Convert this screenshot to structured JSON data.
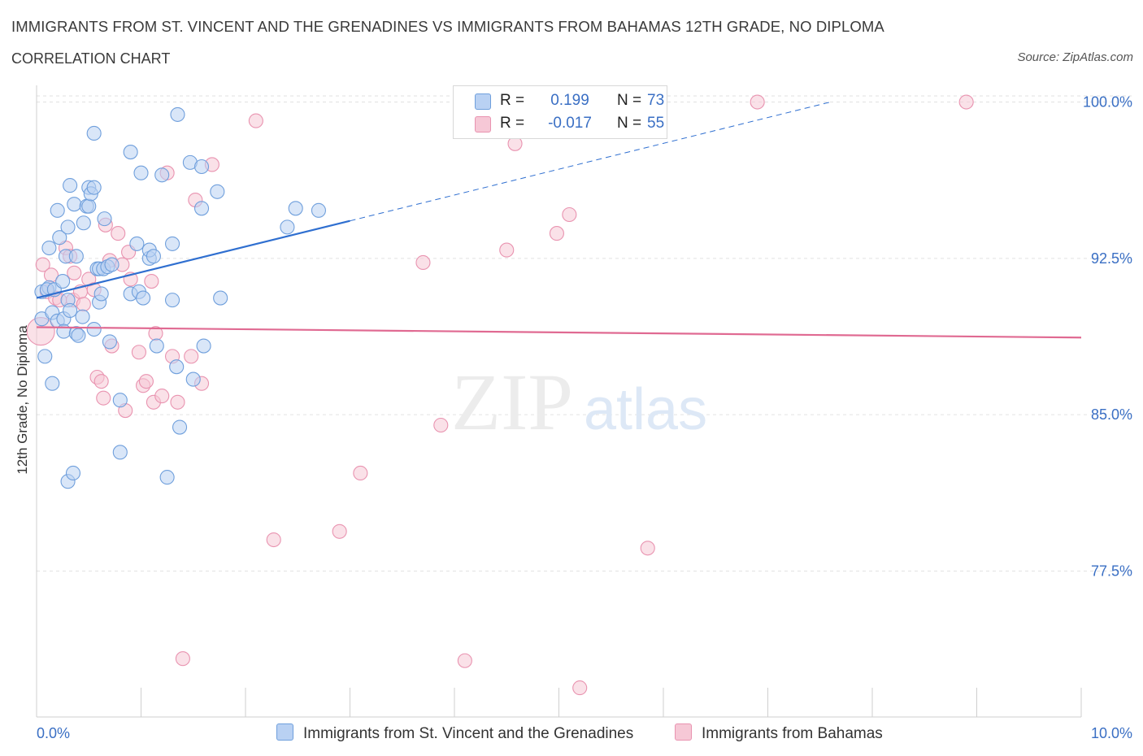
{
  "title": "IMMIGRANTS FROM ST. VINCENT AND THE GRENADINES VS IMMIGRANTS FROM BAHAMAS 12TH GRADE, NO DIPLOMA",
  "subtitle": "CORRELATION CHART",
  "source": "Source: ZipAtlas.com",
  "watermark": {
    "zip": "ZIP",
    "atlas": "atlas"
  },
  "legend": {
    "rows": [
      {
        "r_label": "R =",
        "r_value": "0.199",
        "n_label": "N =",
        "n_value": "73"
      },
      {
        "r_label": "R =",
        "r_value": "-0.017",
        "n_label": "N =",
        "n_value": "55"
      }
    ]
  },
  "colors": {
    "blue_fill": "#b9d1f3",
    "blue_stroke": "#6f9fdc",
    "blue_line": "#2f6fd0",
    "pink_fill": "#f6c8d6",
    "pink_stroke": "#e993b0",
    "pink_line": "#e06a92",
    "tick_label": "#3a6fc4",
    "grid": "#e2e2e2"
  },
  "chart_data": {
    "type": "scatter",
    "xlabel": "",
    "ylabel": "12th Grade, No Diploma",
    "xlim": [
      0,
      10
    ],
    "ylim": [
      70.5,
      100.8
    ],
    "x_tick_labels": [
      "0.0%",
      "10.0%"
    ],
    "y_ticks": [
      77.5,
      85.0,
      92.5,
      100.0
    ],
    "y_tick_labels": [
      "77.5%",
      "85.0%",
      "92.5%",
      "100.0%"
    ],
    "grid": true,
    "series": [
      {
        "name": "Immigrants from St. Vincent and the Grenadines",
        "color": "#b9d1f3",
        "trend": {
          "x0": 0.0,
          "y0": 90.6,
          "x1": 3.0,
          "y1": 94.3,
          "dashed_to_x": 7.6,
          "dashed_to_y": 100.0
        },
        "points": [
          [
            0.05,
            90.9
          ],
          [
            0.08,
            87.8
          ],
          [
            0.05,
            89.6
          ],
          [
            0.12,
            91.1
          ],
          [
            0.1,
            91.0
          ],
          [
            0.15,
            89.9
          ],
          [
            0.12,
            93.0
          ],
          [
            0.17,
            91.0
          ],
          [
            0.2,
            89.5
          ],
          [
            0.2,
            94.8
          ],
          [
            0.22,
            93.5
          ],
          [
            0.26,
            89.6
          ],
          [
            0.25,
            91.4
          ],
          [
            0.28,
            92.6
          ],
          [
            0.26,
            89.0
          ],
          [
            0.3,
            90.5
          ],
          [
            0.32,
            90.0
          ],
          [
            0.3,
            94.0
          ],
          [
            0.36,
            95.1
          ],
          [
            0.38,
            92.6
          ],
          [
            0.38,
            88.9
          ],
          [
            0.4,
            88.8
          ],
          [
            0.44,
            89.7
          ],
          [
            0.45,
            94.2
          ],
          [
            0.48,
            95.0
          ],
          [
            0.5,
            95.9
          ],
          [
            0.5,
            95.0
          ],
          [
            0.52,
            95.6
          ],
          [
            0.55,
            95.9
          ],
          [
            0.55,
            89.1
          ],
          [
            0.55,
            98.5
          ],
          [
            0.58,
            92.0
          ],
          [
            0.6,
            90.4
          ],
          [
            0.6,
            92.0
          ],
          [
            0.62,
            90.8
          ],
          [
            0.64,
            92.0
          ],
          [
            0.65,
            94.4
          ],
          [
            0.68,
            92.1
          ],
          [
            0.72,
            92.2
          ],
          [
            0.8,
            85.7
          ],
          [
            0.8,
            83.2
          ],
          [
            0.9,
            97.6
          ],
          [
            0.9,
            90.8
          ],
          [
            0.96,
            93.2
          ],
          [
            0.98,
            90.9
          ],
          [
            1.0,
            96.6
          ],
          [
            1.02,
            90.6
          ],
          [
            1.08,
            92.5
          ],
          [
            1.08,
            92.9
          ],
          [
            1.15,
            88.3
          ],
          [
            1.2,
            96.5
          ],
          [
            1.25,
            82.0
          ],
          [
            1.3,
            90.5
          ],
          [
            1.3,
            93.2
          ],
          [
            1.34,
            87.3
          ],
          [
            1.35,
            99.4
          ],
          [
            1.37,
            84.4
          ],
          [
            1.47,
            97.1
          ],
          [
            1.5,
            86.7
          ],
          [
            1.58,
            94.9
          ],
          [
            1.58,
            96.9
          ],
          [
            1.6,
            88.3
          ],
          [
            1.73,
            95.7
          ],
          [
            1.76,
            90.6
          ],
          [
            2.4,
            94.0
          ],
          [
            2.48,
            94.9
          ],
          [
            2.7,
            94.8
          ],
          [
            0.3,
            81.8
          ],
          [
            0.35,
            82.2
          ],
          [
            0.15,
            86.5
          ],
          [
            0.32,
            96.0
          ],
          [
            1.12,
            92.6
          ],
          [
            0.7,
            88.5
          ]
        ]
      },
      {
        "name": "Immigrants from Bahamas",
        "color": "#f6c8d6",
        "trend": {
          "x0": 0.0,
          "y0": 89.2,
          "x1": 10.0,
          "y1": 88.7
        },
        "points": [
          [
            0.04,
            89.0
          ],
          [
            0.06,
            92.2
          ],
          [
            0.1,
            90.9
          ],
          [
            0.14,
            91.7
          ],
          [
            0.18,
            90.6
          ],
          [
            0.22,
            90.5
          ],
          [
            0.28,
            93.0
          ],
          [
            0.32,
            92.6
          ],
          [
            0.35,
            90.5
          ],
          [
            0.36,
            91.8
          ],
          [
            0.42,
            90.9
          ],
          [
            0.45,
            90.3
          ],
          [
            0.5,
            91.5
          ],
          [
            0.55,
            91.0
          ],
          [
            0.58,
            86.8
          ],
          [
            0.62,
            86.6
          ],
          [
            0.64,
            85.8
          ],
          [
            0.66,
            94.1
          ],
          [
            0.7,
            92.4
          ],
          [
            0.72,
            88.3
          ],
          [
            0.78,
            93.7
          ],
          [
            0.82,
            92.2
          ],
          [
            0.85,
            85.2
          ],
          [
            0.88,
            92.8
          ],
          [
            0.9,
            91.5
          ],
          [
            0.98,
            88.0
          ],
          [
            1.02,
            86.4
          ],
          [
            1.05,
            86.6
          ],
          [
            1.1,
            91.4
          ],
          [
            1.12,
            85.6
          ],
          [
            1.2,
            85.9
          ],
          [
            1.25,
            96.6
          ],
          [
            1.3,
            87.8
          ],
          [
            1.35,
            85.6
          ],
          [
            1.4,
            73.3
          ],
          [
            1.48,
            87.8
          ],
          [
            1.52,
            95.3
          ],
          [
            1.58,
            86.5
          ],
          [
            1.68,
            97.0
          ],
          [
            2.1,
            99.1
          ],
          [
            2.27,
            79.0
          ],
          [
            2.9,
            79.4
          ],
          [
            3.1,
            82.2
          ],
          [
            3.7,
            92.3
          ],
          [
            3.87,
            84.5
          ],
          [
            4.1,
            73.2
          ],
          [
            4.5,
            92.9
          ],
          [
            4.58,
            98.0
          ],
          [
            4.98,
            93.7
          ],
          [
            5.1,
            94.6
          ],
          [
            5.2,
            71.9
          ],
          [
            5.85,
            78.6
          ],
          [
            6.9,
            100.0
          ],
          [
            8.9,
            100.0
          ],
          [
            1.14,
            88.9
          ]
        ]
      }
    ]
  }
}
